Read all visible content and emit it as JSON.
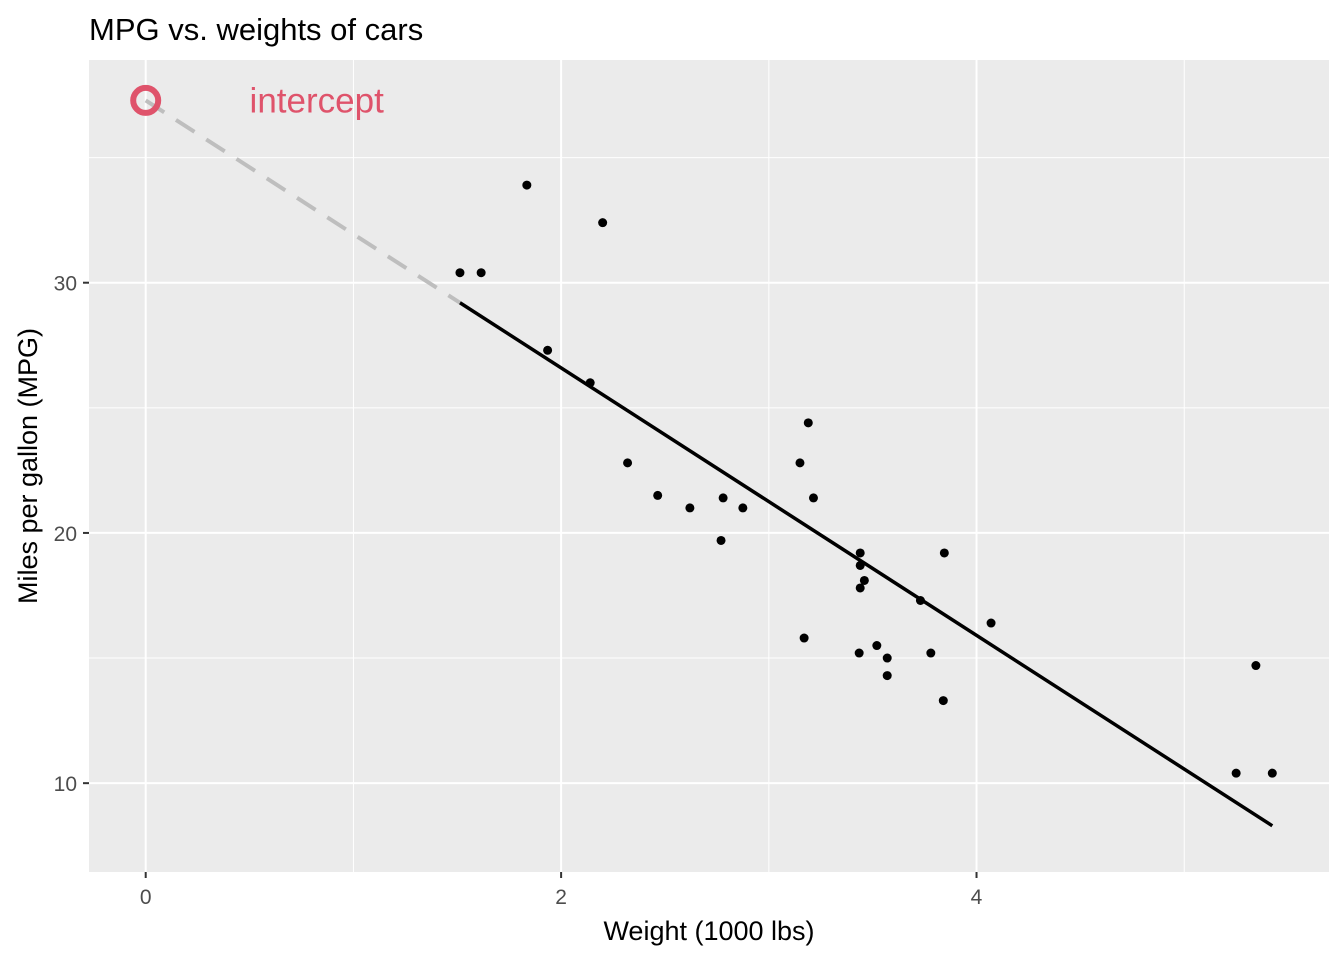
{
  "chart_data": {
    "type": "scatter",
    "title": "MPG vs. weights of cars",
    "xlabel": "Weight (1000 lbs)",
    "ylabel": "Miles per gallon (MPG)",
    "xlim": [
      -0.273,
      5.697
    ],
    "ylim": [
      6.45,
      38.9
    ],
    "x_major_ticks": [
      0,
      2,
      4
    ],
    "x_minor_ticks": [
      1,
      3,
      5
    ],
    "y_major_ticks": [
      10,
      20,
      30
    ],
    "y_minor_ticks": [
      15,
      25,
      35
    ],
    "x_tick_labels": [
      "0",
      "2",
      "4"
    ],
    "y_tick_labels": [
      "10",
      "20",
      "30"
    ],
    "grid": true,
    "points": {
      "x": [
        2.62,
        2.875,
        2.32,
        3.215,
        3.44,
        3.46,
        3.57,
        3.19,
        3.15,
        3.44,
        3.44,
        4.07,
        3.73,
        3.78,
        5.25,
        5.424,
        5.345,
        2.2,
        1.615,
        1.835,
        2.465,
        3.52,
        3.435,
        3.84,
        3.845,
        1.935,
        2.14,
        1.513,
        3.17,
        2.77,
        3.57,
        2.78
      ],
      "y": [
        21.0,
        21.0,
        22.8,
        21.4,
        18.7,
        18.1,
        14.3,
        24.4,
        22.8,
        19.2,
        17.8,
        16.4,
        17.3,
        15.2,
        10.4,
        10.4,
        14.7,
        32.4,
        30.4,
        33.9,
        21.5,
        15.5,
        15.2,
        13.3,
        19.2,
        27.3,
        26.0,
        30.4,
        15.8,
        19.7,
        15.0,
        21.4
      ],
      "color": "#000000"
    },
    "fit_line": {
      "intercept": 37.2851,
      "slope": -5.3445,
      "x_range": [
        1.513,
        5.424
      ],
      "color": "#000000"
    },
    "extrapolation_line": {
      "x_range": [
        0,
        1.513
      ],
      "style": "dashed",
      "color": "#bebebe"
    },
    "intercept_marker": {
      "x": 0,
      "y": 37.2851,
      "color": "#df536b"
    },
    "annotations": [
      {
        "text": "intercept",
        "x": 0.5,
        "y": 37.2851,
        "color": "#df536b"
      }
    ],
    "colors": {
      "panel": "#ebebeb",
      "grid": "#ffffff",
      "tick": "#333333",
      "tick_label": "#4d4d4d"
    }
  }
}
